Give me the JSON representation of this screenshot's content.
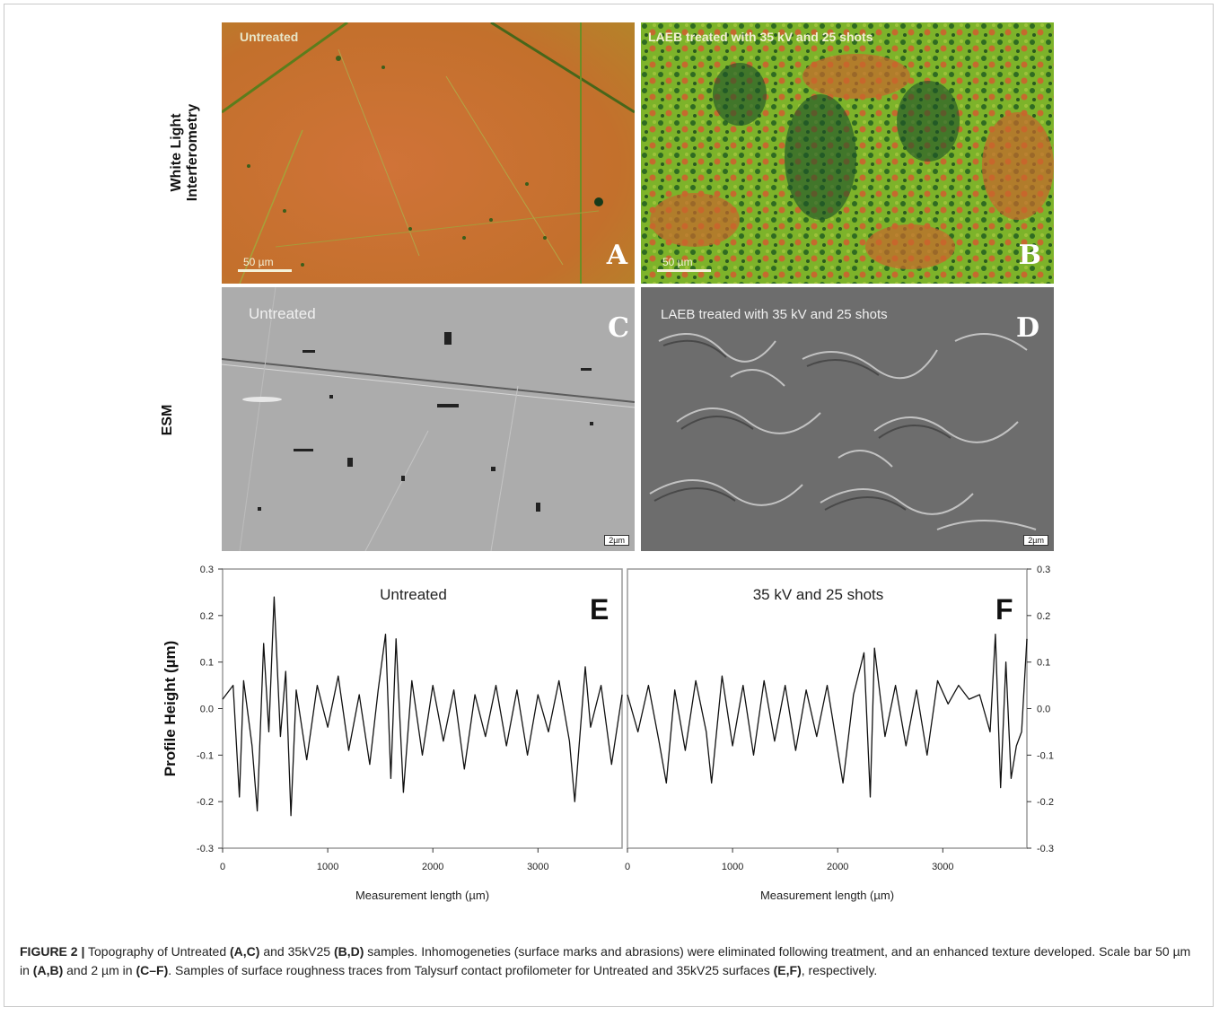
{
  "rows": {
    "wli_label": "White Light\nInterferometry",
    "esm_label": "ESM"
  },
  "panels": {
    "A": {
      "letter": "A",
      "overlay": "Untreated",
      "scale": "50 µm"
    },
    "B": {
      "letter": "B",
      "overlay": "LAEB treated with 35 kV and 25 shots",
      "scale": "50 µm"
    },
    "C": {
      "letter": "C",
      "overlay": "Untreated",
      "scale": "2µm"
    },
    "D": {
      "letter": "D",
      "overlay": "LAEB treated with 35 kV and 25 shots",
      "scale": "2µm"
    }
  },
  "colors": {
    "wli_orange": "#c8702e",
    "wli_green": "#7ab52a",
    "wli_dark": "#1f5a2a",
    "sem_gray": "#a9a9a9",
    "trace": "#111111"
  },
  "chart_data": [
    {
      "type": "line",
      "panel": "E",
      "annotation": "Untreated",
      "ylabel": "Profile Height (µm)",
      "xlabel": "Measurement length (µm)",
      "xlim": [
        0,
        3800
      ],
      "ylim": [
        -0.3,
        0.3
      ],
      "xticks": [
        "0",
        "1000",
        "2000",
        "3000"
      ],
      "yticks": [
        "-0.3",
        "-0.2",
        "-0.1",
        "0.0",
        "0.1",
        "0.2",
        "0.3"
      ],
      "series": [
        {
          "x": [
            0,
            100,
            160,
            200,
            280,
            330,
            390,
            440,
            490,
            550,
            600,
            650,
            700,
            800,
            900,
            1000,
            1100,
            1200,
            1300,
            1400,
            1480,
            1550,
            1600,
            1650,
            1720,
            1800,
            1900,
            2000,
            2100,
            2200,
            2300,
            2400,
            2500,
            2600,
            2700,
            2800,
            2900,
            3000,
            3100,
            3200,
            3300,
            3350,
            3450,
            3500,
            3600,
            3700,
            3800
          ],
          "y": [
            0.02,
            0.05,
            -0.19,
            0.06,
            -0.08,
            -0.22,
            0.14,
            -0.05,
            0.24,
            -0.06,
            0.08,
            -0.23,
            0.04,
            -0.11,
            0.05,
            -0.04,
            0.07,
            -0.09,
            0.03,
            -0.12,
            0.04,
            0.16,
            -0.15,
            0.15,
            -0.18,
            0.06,
            -0.1,
            0.05,
            -0.07,
            0.04,
            -0.13,
            0.03,
            -0.06,
            0.05,
            -0.08,
            0.04,
            -0.1,
            0.03,
            -0.05,
            0.06,
            -0.07,
            -0.2,
            0.09,
            -0.04,
            0.05,
            -0.12,
            0.03
          ]
        }
      ]
    },
    {
      "type": "line",
      "panel": "F",
      "annotation": "35 kV and 25 shots",
      "ylabel": "",
      "xlabel": "Measurement length (µm)",
      "xlim": [
        0,
        3800
      ],
      "ylim": [
        -0.3,
        0.3
      ],
      "xticks": [
        "0",
        "1000",
        "2000",
        "3000"
      ],
      "yticks": [
        "-0.3",
        "-0.2",
        "-0.1",
        "0.0",
        "0.1",
        "0.2",
        "0.3"
      ],
      "series": [
        {
          "x": [
            0,
            100,
            200,
            300,
            370,
            450,
            550,
            650,
            750,
            800,
            900,
            1000,
            1100,
            1200,
            1300,
            1400,
            1500,
            1600,
            1700,
            1800,
            1900,
            2050,
            2150,
            2250,
            2310,
            2350,
            2450,
            2550,
            2650,
            2750,
            2850,
            2950,
            3050,
            3150,
            3250,
            3350,
            3450,
            3500,
            3550,
            3600,
            3650,
            3700,
            3750,
            3800
          ],
          "y": [
            0.03,
            -0.05,
            0.05,
            -0.07,
            -0.16,
            0.04,
            -0.09,
            0.06,
            -0.05,
            -0.16,
            0.07,
            -0.08,
            0.05,
            -0.1,
            0.06,
            -0.07,
            0.05,
            -0.09,
            0.04,
            -0.06,
            0.05,
            -0.16,
            0.03,
            0.12,
            -0.19,
            0.13,
            -0.06,
            0.05,
            -0.08,
            0.04,
            -0.1,
            0.06,
            0.01,
            0.05,
            0.02,
            0.03,
            -0.05,
            0.16,
            -0.17,
            0.1,
            -0.15,
            -0.08,
            -0.05,
            0.15
          ]
        }
      ]
    }
  ],
  "caption": {
    "figure_label": "FIGURE 2 |",
    "t1": " Topography of Untreated ",
    "b1": "(A,C)",
    "t2": " and 35kV25 ",
    "b2": "(B,D)",
    "t3": " samples. Inhomogeneties (surface marks and abrasions) were eliminated following treatment, and an enhanced texture developed. Scale bar 50 µm in ",
    "b3": "(A,B)",
    "t4": " and 2 µm in ",
    "b4": "(C–F)",
    "t5": ". Samples of surface roughness traces from Talysurf contact profilometer for Untreated and 35kV25 surfaces ",
    "b5": "(E,F)",
    "t6": ", respectively."
  }
}
